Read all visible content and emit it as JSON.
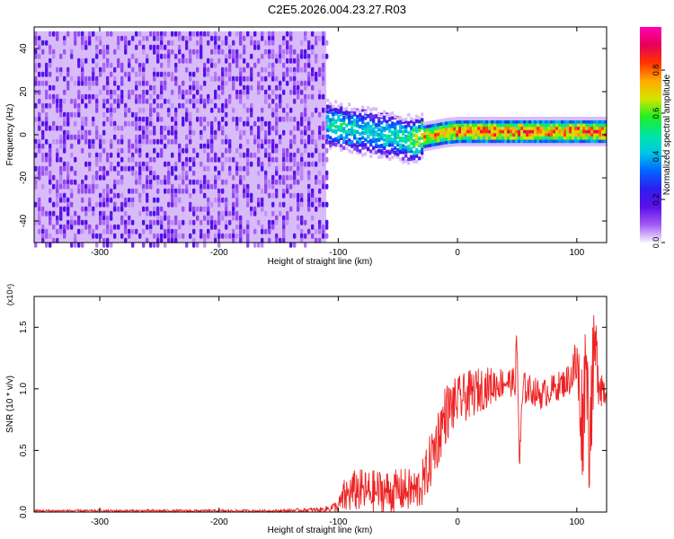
{
  "title": "C2E5.2026.004.23.27.R03",
  "chart_data": [
    {
      "type": "heatmap",
      "xlabel": "Height of straight line (km)",
      "ylabel": "Frequency (Hz)",
      "xlim": [
        -355,
        125
      ],
      "ylim": [
        -50,
        50
      ],
      "xticks": [
        -300,
        -200,
        -100,
        0,
        100
      ],
      "yticks": [
        -40,
        -20,
        0,
        20,
        40
      ],
      "colorbar": {
        "label": "Normalized spectral amplitude",
        "range": [
          0.0,
          1.0
        ],
        "ticks": [
          "0.0",
          "0.2",
          "0.4",
          "0.6",
          "0.8"
        ],
        "colors": [
          "#f7f3fd",
          "#a259f2",
          "#5b0fe8",
          "#2d1ef0",
          "#0066ff",
          "#00c8e6",
          "#00e6a0",
          "#22ee22",
          "#d4e600",
          "#ffaa00",
          "#ff3300",
          "#e8005a",
          "#ff00b4"
        ]
      },
      "noise_region": {
        "x_range": [
          -355,
          -110
        ],
        "freq_range": [
          -50,
          48
        ],
        "amplitude": 0.15
      },
      "signal_track": {
        "x": [
          -110,
          -100,
          -90,
          -80,
          -70,
          -60,
          -50,
          -40,
          -30,
          -20,
          -10,
          0,
          10,
          20,
          30,
          40,
          50,
          60,
          70,
          80,
          90,
          100,
          105,
          110,
          125
        ],
        "freq": [
          5,
          4,
          3,
          2,
          1,
          0,
          -1,
          -2,
          -1,
          0,
          1,
          1.5,
          1.5,
          1.5,
          1.5,
          1.5,
          1.5,
          1.5,
          1.5,
          1.5,
          1.5,
          1.5,
          1.5,
          1.5,
          1.5
        ],
        "amplitude": [
          0.5,
          0.55,
          0.55,
          0.5,
          0.5,
          0.5,
          0.55,
          0.6,
          0.8,
          0.85,
          0.9,
          0.9,
          0.9,
          0.9,
          0.9,
          0.9,
          0.9,
          0.9,
          0.9,
          0.9,
          0.9,
          0.9,
          0.85,
          0.9,
          0.9
        ]
      }
    },
    {
      "type": "line",
      "xlabel": "Height of straight line (km)",
      "ylabel": "SNR (10 * v/v)",
      "multiplier": "(x10⁴)",
      "xlim": [
        -355,
        125
      ],
      "ylim": [
        0,
        1.75
      ],
      "xticks": [
        -300,
        -200,
        -100,
        0,
        100
      ],
      "yticks": [
        0.0,
        0.5,
        1.0,
        1.5
      ],
      "series": [
        {
          "color": "#ee2222",
          "x": [
            -355,
            -250,
            -150,
            -112,
            -100,
            -95,
            -85,
            -75,
            -65,
            -55,
            -45,
            -35,
            -28,
            -20,
            -10,
            0,
            10,
            20,
            30,
            40,
            48,
            50,
            52,
            55,
            60,
            70,
            80,
            90,
            95,
            100,
            105,
            108,
            110,
            115,
            120,
            125
          ],
          "y": [
            0.01,
            0.01,
            0.01,
            0.02,
            0.05,
            0.12,
            0.18,
            0.16,
            0.17,
            0.16,
            0.18,
            0.17,
            0.25,
            0.5,
            0.8,
            0.9,
            0.95,
            1.0,
            1.03,
            1.06,
            1.05,
            1.3,
            0.4,
            1.0,
            1.0,
            0.95,
            1.0,
            1.05,
            1.1,
            1.2,
            0.7,
            1.4,
            0.6,
            1.3,
            1.05,
            0.95
          ],
          "spread": [
            0.01,
            0.01,
            0.01,
            0.02,
            0.05,
            0.15,
            0.18,
            0.18,
            0.18,
            0.18,
            0.18,
            0.18,
            0.2,
            0.25,
            0.25,
            0.2,
            0.2,
            0.18,
            0.15,
            0.12,
            0.12,
            0.3,
            0.2,
            0.15,
            0.12,
            0.12,
            0.12,
            0.12,
            0.15,
            0.3,
            0.5,
            0.4,
            0.5,
            0.4,
            0.2,
            0.1
          ]
        }
      ]
    }
  ]
}
